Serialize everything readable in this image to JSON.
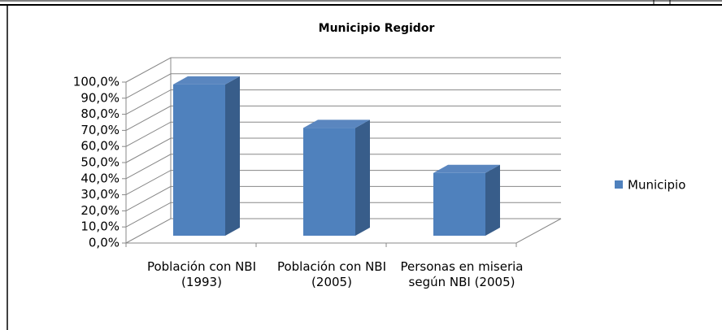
{
  "chart_data": {
    "type": "bar3d",
    "title": "Municipio Regidor",
    "categories": [
      "Población con NBI (1993)",
      "Población con NBI (2005)",
      "Personas en miseria según NBI (2005)"
    ],
    "series": [
      {
        "name": "Municipio",
        "color": "#4f81bd",
        "values": [
          94,
          67,
          39
        ]
      }
    ],
    "ylim": [
      0,
      100
    ],
    "yticks": [
      {
        "value": 0,
        "label": "0,0%"
      },
      {
        "value": 10,
        "label": "10,0%"
      },
      {
        "value": 20,
        "label": "20,0%"
      },
      {
        "value": 30,
        "label": "30,0%"
      },
      {
        "value": 40,
        "label": "40,0%"
      },
      {
        "value": 50,
        "label": "50,0%"
      },
      {
        "value": 60,
        "label": "60,0%"
      },
      {
        "value": 70,
        "label": "70,0%"
      },
      {
        "value": 80,
        "label": "80,0%"
      },
      {
        "value": 90,
        "label": "90,0%"
      },
      {
        "value": 100,
        "label": "100,0%"
      }
    ],
    "grid": true,
    "legend": "right"
  }
}
